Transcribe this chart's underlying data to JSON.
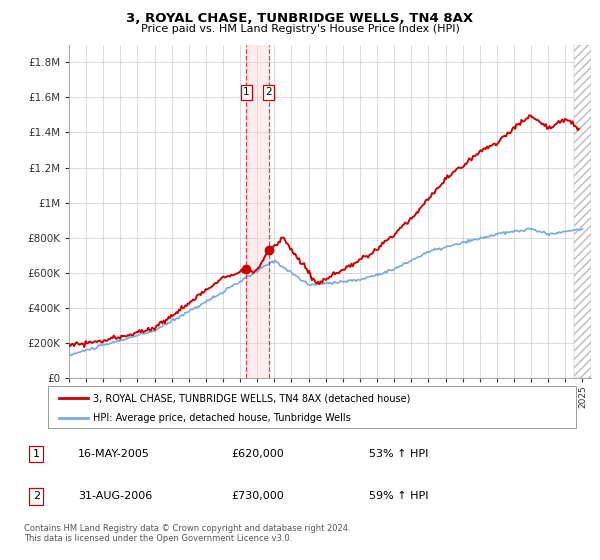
{
  "title": "3, ROYAL CHASE, TUNBRIDGE WELLS, TN4 8AX",
  "subtitle": "Price paid vs. HM Land Registry's House Price Index (HPI)",
  "ylim": [
    0,
    1900000
  ],
  "yticks": [
    0,
    200000,
    400000,
    600000,
    800000,
    1000000,
    1200000,
    1400000,
    1600000,
    1800000
  ],
  "ytick_labels": [
    "£0",
    "£200K",
    "£400K",
    "£600K",
    "£800K",
    "£1M",
    "£1.2M",
    "£1.4M",
    "£1.6M",
    "£1.8M"
  ],
  "red_line_color": "#cc0000",
  "blue_line_color": "#7aaadd",
  "transaction1_date": 2005.37,
  "transaction1_price": 620000,
  "transaction1_label": "1",
  "transaction2_date": 2006.66,
  "transaction2_price": 730000,
  "transaction2_label": "2",
  "legend_red": "3, ROYAL CHASE, TUNBRIDGE WELLS, TN4 8AX (detached house)",
  "legend_blue": "HPI: Average price, detached house, Tunbridge Wells",
  "table_rows": [
    [
      "1",
      "16-MAY-2005",
      "£620,000",
      "53% ↑ HPI"
    ],
    [
      "2",
      "31-AUG-2006",
      "£730,000",
      "59% ↑ HPI"
    ]
  ],
  "footer": "Contains HM Land Registry data © Crown copyright and database right 2024.\nThis data is licensed under the Open Government Licence v3.0.",
  "xmin": 1995.0,
  "xmax": 2025.5,
  "hatch_start": 2024.5
}
